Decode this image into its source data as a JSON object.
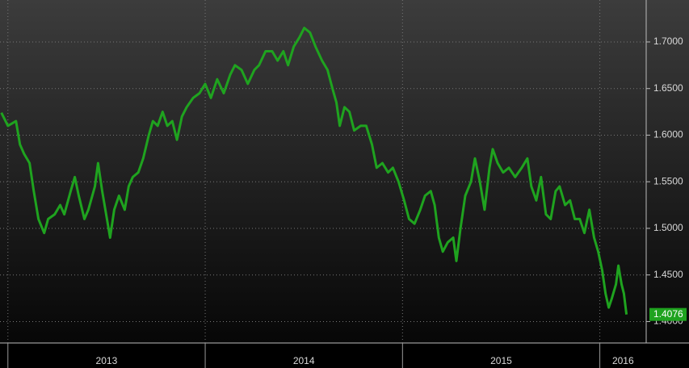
{
  "chart_data": {
    "type": "line",
    "x": [
      2012.967,
      2013.0,
      2013.041,
      2013.061,
      2013.082,
      2013.11,
      2013.131,
      2013.155,
      2013.184,
      2013.204,
      2013.237,
      2013.265,
      2013.286,
      2013.318,
      2013.339,
      2013.359,
      2013.388,
      2013.408,
      2013.441,
      2013.457,
      2013.478,
      2013.502,
      2013.518,
      2013.539,
      2013.563,
      2013.592,
      2013.612,
      2013.633,
      2013.661,
      2013.686,
      2013.714,
      2013.735,
      2013.759,
      2013.784,
      2013.808,
      2013.833,
      2013.857,
      2013.882,
      2013.906,
      2013.939,
      2013.971,
      2014.0,
      2014.029,
      2014.061,
      2014.094,
      2014.127,
      2014.151,
      2014.184,
      2014.216,
      2014.249,
      2014.273,
      2014.306,
      2014.339,
      2014.367,
      2014.396,
      2014.42,
      2014.449,
      2014.478,
      2014.502,
      2014.531,
      2014.559,
      2014.592,
      2014.62,
      2014.645,
      2014.665,
      2014.682,
      2014.706,
      2014.731,
      2014.755,
      2014.788,
      2014.816,
      2014.845,
      2014.869,
      2014.898,
      2014.927,
      2014.951,
      2014.98,
      2015.008,
      2015.033,
      2015.061,
      2015.09,
      2015.114,
      2015.143,
      2015.163,
      2015.184,
      2015.204,
      2015.229,
      2015.257,
      2015.273,
      2015.294,
      2015.318,
      2015.347,
      2015.367,
      2015.392,
      2015.416,
      2015.441,
      2015.457,
      2015.482,
      2015.51,
      2015.539,
      2015.571,
      2015.604,
      2015.633,
      2015.653,
      2015.678,
      2015.702,
      2015.727,
      2015.751,
      2015.776,
      2015.796,
      2015.824,
      2015.849,
      2015.873,
      2015.898,
      2015.922,
      2015.947,
      2015.971,
      2015.992,
      2016.012,
      2016.029,
      2016.045,
      2016.061,
      2016.082,
      2016.094,
      2016.11,
      2016.122,
      2016.135
    ],
    "series": [
      {
        "color": "#1fa31f",
        "values": [
          1.624,
          1.61,
          1.615,
          1.59,
          1.58,
          1.57,
          1.54,
          1.51,
          1.495,
          1.51,
          1.515,
          1.525,
          1.515,
          1.54,
          1.555,
          1.535,
          1.51,
          1.52,
          1.545,
          1.57,
          1.54,
          1.51,
          1.49,
          1.52,
          1.535,
          1.52,
          1.545,
          1.555,
          1.56,
          1.575,
          1.6,
          1.615,
          1.61,
          1.625,
          1.61,
          1.615,
          1.595,
          1.62,
          1.63,
          1.64,
          1.645,
          1.655,
          1.64,
          1.66,
          1.645,
          1.665,
          1.675,
          1.67,
          1.655,
          1.67,
          1.675,
          1.69,
          1.69,
          1.68,
          1.69,
          1.675,
          1.695,
          1.705,
          1.715,
          1.71,
          1.695,
          1.68,
          1.67,
          1.65,
          1.635,
          1.61,
          1.63,
          1.625,
          1.605,
          1.61,
          1.61,
          1.59,
          1.565,
          1.57,
          1.56,
          1.565,
          1.55,
          1.53,
          1.51,
          1.505,
          1.52,
          1.535,
          1.54,
          1.525,
          1.49,
          1.475,
          1.485,
          1.49,
          1.465,
          1.5,
          1.535,
          1.55,
          1.575,
          1.55,
          1.52,
          1.565,
          1.585,
          1.57,
          1.56,
          1.565,
          1.555,
          1.565,
          1.575,
          1.545,
          1.53,
          1.555,
          1.515,
          1.51,
          1.54,
          1.545,
          1.525,
          1.53,
          1.51,
          1.51,
          1.495,
          1.52,
          1.49,
          1.475,
          1.455,
          1.43,
          1.415,
          1.425,
          1.44,
          1.46,
          1.44,
          1.43,
          1.4076
        ]
      }
    ],
    "xlim": [
      2012.96,
      2016.235
    ],
    "xticks": [
      2013,
      2014,
      2015,
      2016
    ],
    "ylim": [
      1.377,
      1.745
    ],
    "yticks": [
      {
        "value": 1.4,
        "label": "1.4000"
      },
      {
        "value": 1.45,
        "label": "1.4500"
      },
      {
        "value": 1.5,
        "label": "1.5000"
      },
      {
        "value": 1.55,
        "label": "1.5500"
      },
      {
        "value": 1.6,
        "label": "1.6000"
      },
      {
        "value": 1.65,
        "label": "1.6500"
      },
      {
        "value": 1.7,
        "label": "1.7000"
      }
    ],
    "grid": true
  }
}
